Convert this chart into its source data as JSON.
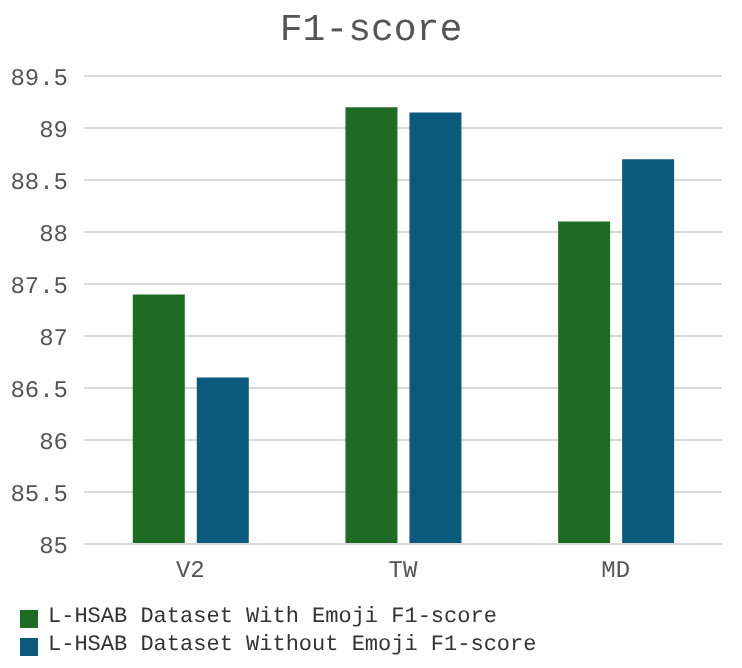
{
  "chart_data": {
    "type": "bar",
    "title": "F1-score",
    "categories": [
      "V2",
      "TW",
      "MD"
    ],
    "series": [
      {
        "name": "L-HSAB Dataset With Emoji F1-score",
        "color": "#1e6b23",
        "values": [
          87.4,
          89.2,
          88.1
        ]
      },
      {
        "name": "L-HSAB Dataset Without Emoji F1-score",
        "color": "#0b5a7e",
        "values": [
          86.6,
          89.15,
          88.7
        ]
      }
    ],
    "ylim": [
      85,
      89.5
    ],
    "yticks": [
      85,
      85.5,
      86,
      86.5,
      87,
      87.5,
      88,
      88.5,
      89,
      89.5
    ],
    "grid": "y",
    "legend": "bottom"
  }
}
